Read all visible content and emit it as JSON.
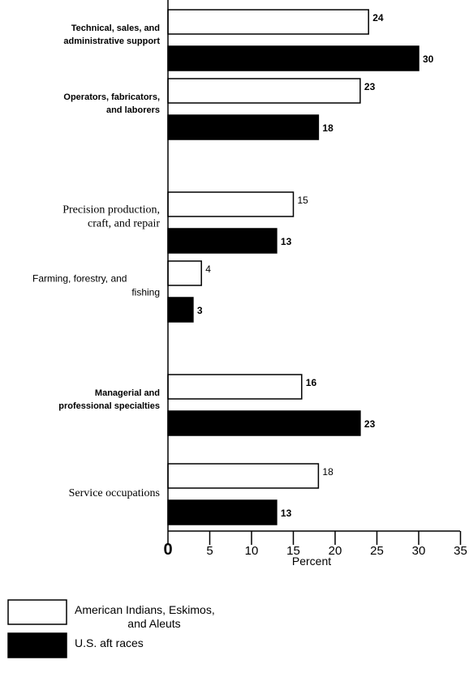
{
  "chart_data": {
    "type": "bar",
    "orientation": "horizontal",
    "xlabel": "Percent",
    "xlim": [
      0,
      35
    ],
    "xticks": [
      "0",
      "5",
      "10",
      "15",
      "20",
      "25",
      "30",
      "35"
    ],
    "categories": [
      {
        "lines": [
          "Technical, sales, and",
          "administrative support"
        ],
        "style": "bold"
      },
      {
        "lines": [
          "Operators, fabricators,",
          "and laborers"
        ],
        "style": "bold"
      },
      {
        "lines": [
          "Precision production,",
          "craft, and repair"
        ],
        "style": "serif"
      },
      {
        "lines": [
          "Farming, forestry, and",
          "fishing"
        ],
        "style": "plain"
      },
      {
        "lines": [
          "Managerial and",
          "professional specialties"
        ],
        "style": "bold"
      },
      {
        "lines": [
          "Service occupations"
        ],
        "style": "serif"
      }
    ],
    "series": [
      {
        "name": "American Indians, Eskimos, and Aleuts",
        "legend_lines": [
          "American Indians, Eskimos,",
          "and Aleuts"
        ],
        "color": "#ffffff",
        "values": [
          24,
          23,
          15,
          4,
          16,
          18
        ],
        "labels": [
          "24",
          "23",
          "15",
          "4",
          "16",
          "18"
        ]
      },
      {
        "name": "U.S. aft races",
        "legend_lines": [
          "U.S. aft races"
        ],
        "color": "#000000",
        "values": [
          30,
          18,
          13,
          3,
          23,
          13
        ],
        "labels": [
          "30",
          "18",
          "13",
          "3",
          "23",
          "13"
        ]
      }
    ],
    "legend_position": "bottom-left",
    "grid": false
  }
}
